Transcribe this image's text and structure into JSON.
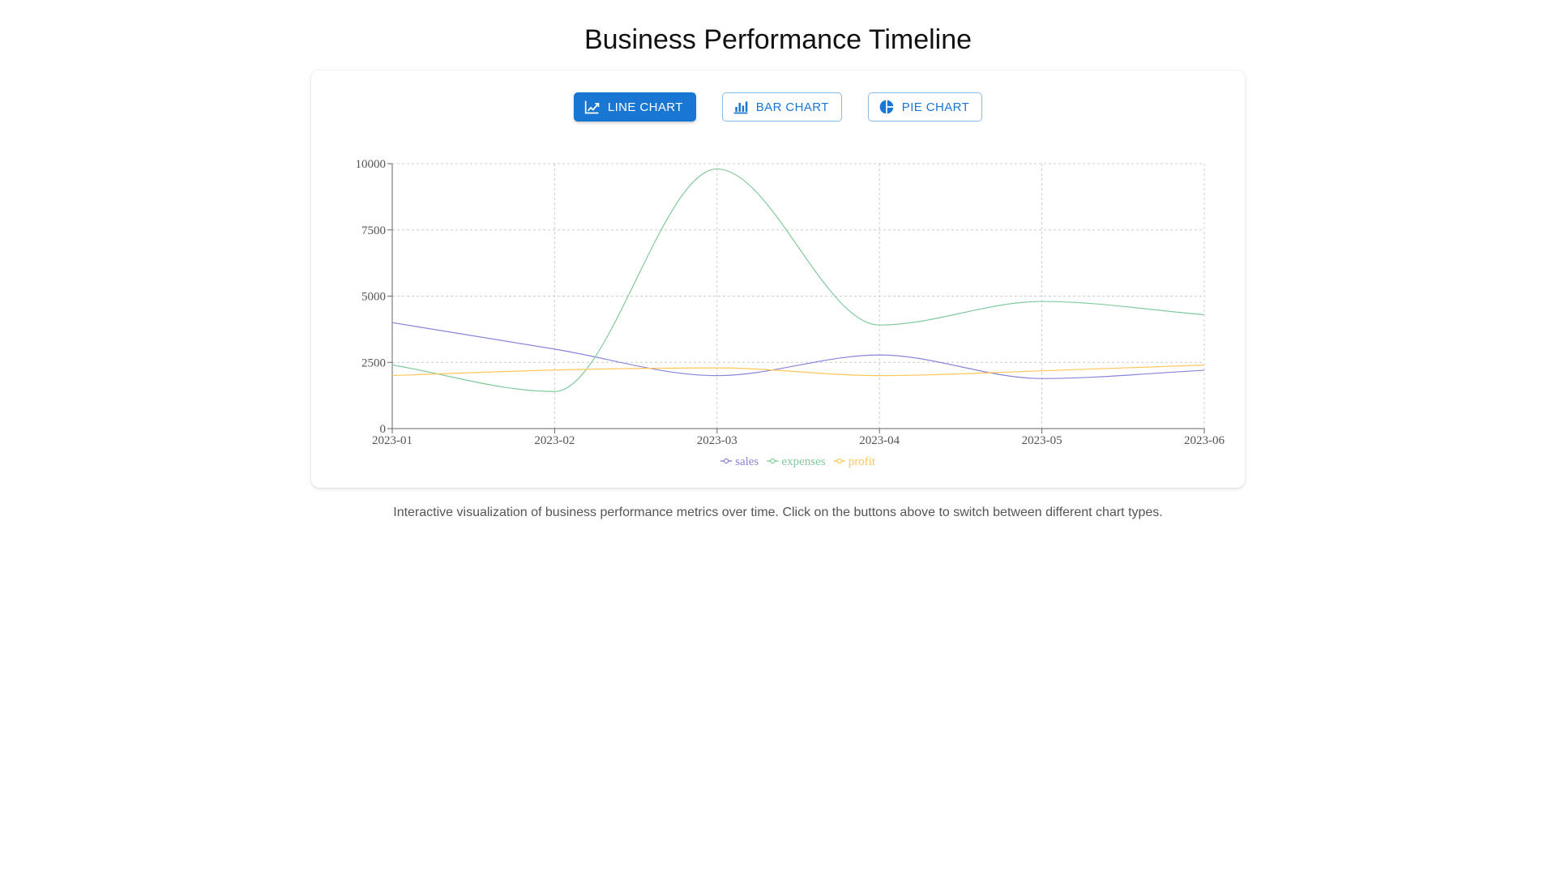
{
  "page": {
    "title": "Business Performance Timeline",
    "description": "Interactive visualization of business performance metrics over time. Click on the buttons above to switch between different chart types."
  },
  "toolbar": {
    "line_label": "Line Chart",
    "bar_label": "Bar Chart",
    "pie_label": "Pie Chart",
    "active": "line",
    "line_icon": "line-chart-icon",
    "bar_icon": "bar-chart-icon",
    "pie_icon": "pie-chart-icon",
    "accent_color": "#1976d2"
  },
  "chart_data": {
    "type": "line",
    "x": [
      "2023-01",
      "2023-02",
      "2023-03",
      "2023-04",
      "2023-05",
      "2023-06"
    ],
    "x_ticks": [
      "2023-01",
      "2023-02",
      "2023-03",
      "2023-04",
      "2023-05",
      "2023-06"
    ],
    "y_ticks": [
      0,
      2500,
      5000,
      7500,
      10000
    ],
    "ylim": [
      0,
      10000
    ],
    "grid": true,
    "legend_position": "bottom-center",
    "series": [
      {
        "name": "sales",
        "color": "#8884d8",
        "values": [
          4000,
          3000,
          2000,
          2780,
          1890,
          2200
        ]
      },
      {
        "name": "expenses",
        "color": "#82ca9d",
        "values": [
          2400,
          1398,
          9800,
          3908,
          4800,
          4300
        ]
      },
      {
        "name": "profit",
        "color": "#ffc658",
        "values": [
          2000,
          2210,
          2290,
          2000,
          2181,
          2400
        ]
      }
    ]
  }
}
